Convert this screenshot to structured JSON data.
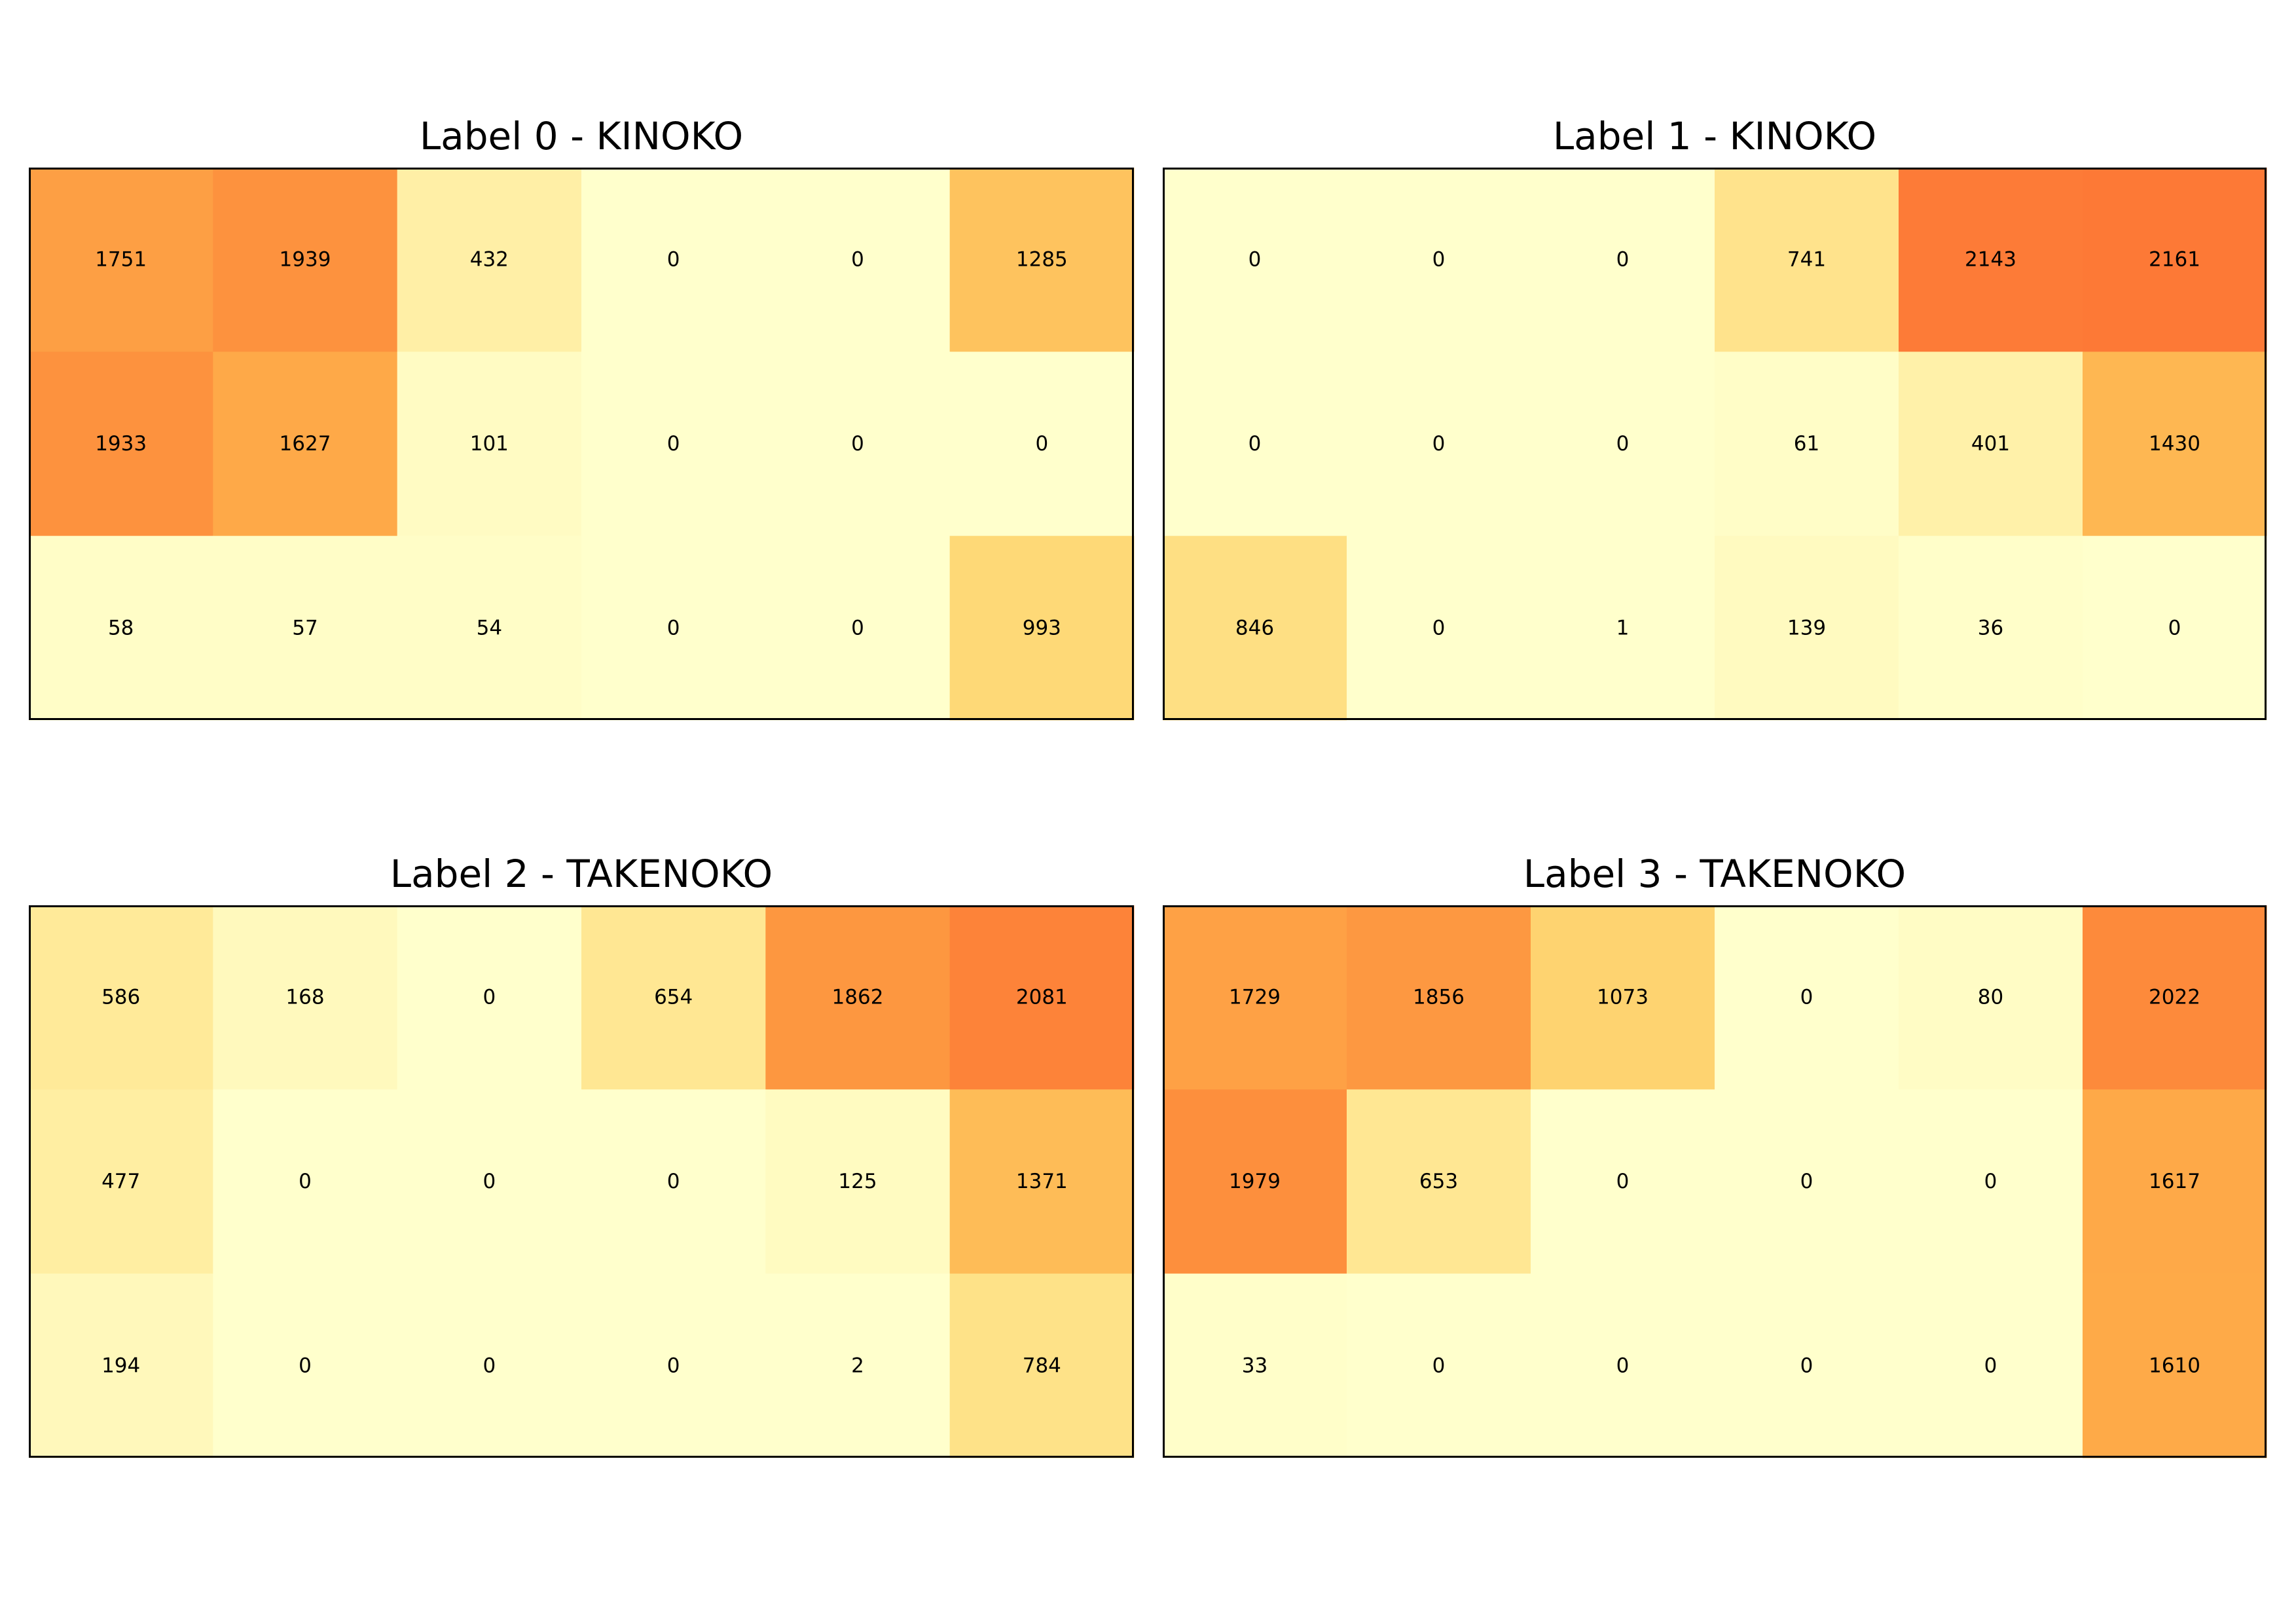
{
  "chart_data": [
    {
      "type": "heatmap",
      "title": "Label 0 - KINOKO",
      "rows": 3,
      "cols": 6,
      "values": [
        [
          1751,
          1939,
          432,
          0,
          0,
          1285
        ],
        [
          1933,
          1627,
          101,
          0,
          0,
          0
        ],
        [
          58,
          57,
          54,
          0,
          0,
          993
        ]
      ],
      "colormap": "YlOrRd",
      "vmin": 0,
      "vmax": 4000,
      "ticks": "none",
      "grid": false
    },
    {
      "type": "heatmap",
      "title": "Label 1 - KINOKO",
      "rows": 3,
      "cols": 6,
      "values": [
        [
          0,
          0,
          0,
          741,
          2143,
          2161
        ],
        [
          0,
          0,
          0,
          61,
          401,
          1430
        ],
        [
          846,
          0,
          1,
          139,
          36,
          0
        ]
      ],
      "colormap": "YlOrRd",
      "vmin": 0,
      "vmax": 4000,
      "ticks": "none",
      "grid": false
    },
    {
      "type": "heatmap",
      "title": "Label 2 - TAKENOKO",
      "rows": 3,
      "cols": 6,
      "values": [
        [
          586,
          168,
          0,
          654,
          1862,
          2081
        ],
        [
          477,
          0,
          0,
          0,
          125,
          1371
        ],
        [
          194,
          0,
          0,
          0,
          2,
          784
        ]
      ],
      "colormap": "YlOrRd",
      "vmin": 0,
      "vmax": 4000,
      "ticks": "none",
      "grid": false
    },
    {
      "type": "heatmap",
      "title": "Label 3 - TAKENOKO",
      "rows": 3,
      "cols": 6,
      "values": [
        [
          1729,
          1856,
          1073,
          0,
          80,
          2022
        ],
        [
          1979,
          653,
          0,
          0,
          0,
          1617
        ],
        [
          33,
          0,
          0,
          0,
          0,
          1610
        ]
      ],
      "colormap": "YlOrRd",
      "vmin": 0,
      "vmax": 4000,
      "ticks": "none",
      "grid": false
    }
  ]
}
